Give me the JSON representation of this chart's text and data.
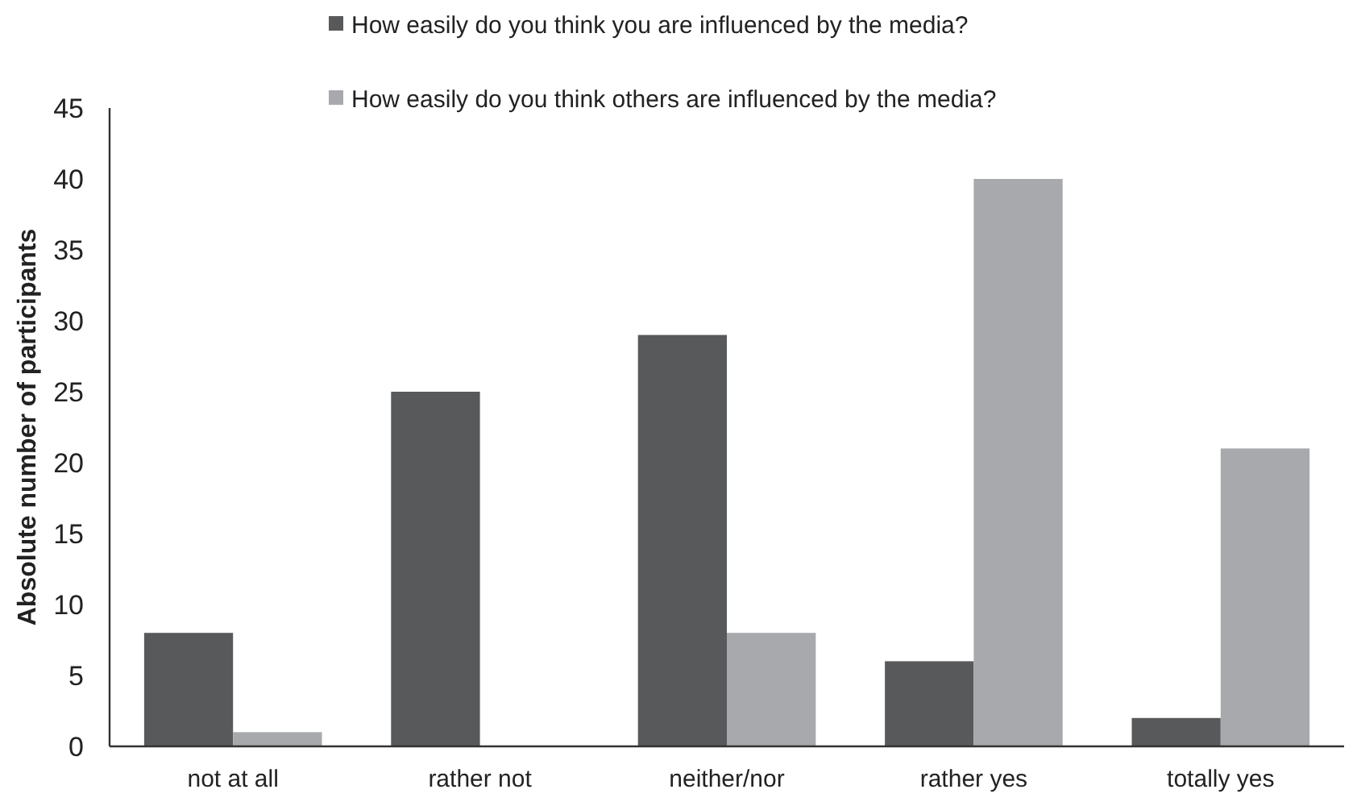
{
  "chart_data": {
    "type": "bar",
    "ylabel": "Absolute number of participants",
    "categories": [
      "not at all",
      "rather not",
      "neither/nor",
      "rather yes",
      "totally yes"
    ],
    "series": [
      {
        "name": "How easily do you think you are influenced by the media?",
        "color": "#58595b",
        "values": [
          8,
          25,
          29,
          6,
          2
        ]
      },
      {
        "name": "How easily do you think others are influenced by the media?",
        "color": "#a7a9ac",
        "values": [
          1,
          0,
          8,
          40,
          21
        ]
      }
    ],
    "ylim": [
      0,
      45
    ],
    "yticks": [
      0,
      5,
      10,
      15,
      20,
      25,
      30,
      35,
      40,
      45
    ],
    "grid": false,
    "legend": "top"
  }
}
